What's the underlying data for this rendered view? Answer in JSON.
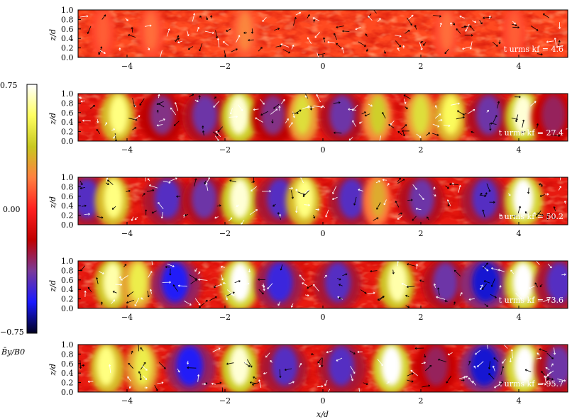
{
  "chart_data": {
    "type": "heatmap",
    "title": "",
    "xlabel": "x/d",
    "ylabel": "z/d",
    "xlim": [
      -5,
      5
    ],
    "ylim": [
      0,
      1
    ],
    "xticks": [
      -4,
      -2,
      0,
      2,
      4
    ],
    "xtick_labels": [
      "−4",
      "−2",
      "0",
      "2",
      "4"
    ],
    "yticks": [
      0.0,
      0.2,
      0.4,
      0.6,
      0.8,
      1.0
    ],
    "ytick_labels": [
      "0.0",
      "0.2",
      "0.4",
      "0.6",
      "0.8",
      "1.0"
    ],
    "colorbar": {
      "label": "B̄y/B0",
      "min": -0.75,
      "max": 0.75,
      "tick_labels": [
        "0.75",
        "0.00",
        "−0.75"
      ],
      "colors": [
        "#000020",
        "#1a1aff",
        "#7a3a9a",
        "#c00000",
        "#ff2020",
        "#ff8040",
        "#c8c820",
        "#ffff60",
        "#ffffff"
      ]
    },
    "quiver": "velocity vectors (black and white arrows)",
    "panels": [
      {
        "time_label": "t urms kf = 4.6",
        "t": 4.6,
        "structures": [
          {
            "x": -4.5,
            "value": 0.12
          },
          {
            "x": -3.5,
            "value": 0.15
          },
          {
            "x": -1.6,
            "value": 0.2
          },
          {
            "x": 2.5,
            "value": 0.15
          },
          {
            "x": 3.9,
            "value": 0.12
          }
        ]
      },
      {
        "time_label": "t urms kf = 27.4",
        "t": 27.4,
        "structures": [
          {
            "x": -4.2,
            "value": 0.6
          },
          {
            "x": -3.3,
            "value": -0.35
          },
          {
            "x": -2.4,
            "value": -0.4
          },
          {
            "x": -1.7,
            "value": 0.7
          },
          {
            "x": -1.0,
            "value": -0.35
          },
          {
            "x": -0.4,
            "value": 0.45
          },
          {
            "x": 0.4,
            "value": -0.4
          },
          {
            "x": 1.1,
            "value": 0.4
          },
          {
            "x": 2.0,
            "value": 0.45
          },
          {
            "x": 2.6,
            "value": 0.55
          },
          {
            "x": 3.4,
            "value": -0.4
          },
          {
            "x": 4.1,
            "value": 0.7
          },
          {
            "x": 4.7,
            "value": -0.3
          }
        ]
      },
      {
        "time_label": "t urms kf = 50.2",
        "t": 50.2,
        "structures": [
          {
            "x": -4.8,
            "value": -0.45
          },
          {
            "x": -4.3,
            "value": 0.6
          },
          {
            "x": -3.2,
            "value": -0.45
          },
          {
            "x": -2.4,
            "value": -0.4
          },
          {
            "x": -1.7,
            "value": 0.7
          },
          {
            "x": -0.9,
            "value": -0.45
          },
          {
            "x": -0.4,
            "value": 0.6
          },
          {
            "x": 0.6,
            "value": -0.45
          },
          {
            "x": 1.1,
            "value": 0.3
          },
          {
            "x": 2.0,
            "value": -0.4
          },
          {
            "x": 3.3,
            "value": -0.45
          },
          {
            "x": 4.1,
            "value": 0.75
          }
        ]
      },
      {
        "time_label": "t urms kf = 73.6",
        "t": 73.6,
        "structures": [
          {
            "x": -4.3,
            "value": 0.65
          },
          {
            "x": -3.8,
            "value": 0.5
          },
          {
            "x": -3.0,
            "value": -0.55
          },
          {
            "x": -1.7,
            "value": 0.75
          },
          {
            "x": -0.9,
            "value": -0.5
          },
          {
            "x": 0.3,
            "value": -0.45
          },
          {
            "x": 1.5,
            "value": 0.65
          },
          {
            "x": 2.5,
            "value": -0.4
          },
          {
            "x": 3.3,
            "value": -0.6
          },
          {
            "x": 4.1,
            "value": 0.75
          },
          {
            "x": 4.8,
            "value": -0.45
          }
        ]
      },
      {
        "time_label": "t urms kf = 95.7",
        "t": 95.7,
        "structures": [
          {
            "x": -4.4,
            "value": 0.6
          },
          {
            "x": -3.7,
            "value": 0.5
          },
          {
            "x": -2.7,
            "value": -0.55
          },
          {
            "x": -1.7,
            "value": 0.7
          },
          {
            "x": -0.8,
            "value": -0.45
          },
          {
            "x": 0.4,
            "value": -0.45
          },
          {
            "x": 1.4,
            "value": 0.75
          },
          {
            "x": 2.3,
            "value": -0.3
          },
          {
            "x": 3.3,
            "value": -0.6
          },
          {
            "x": 4.1,
            "value": 0.75
          },
          {
            "x": 4.8,
            "value": -0.4
          }
        ]
      }
    ]
  }
}
